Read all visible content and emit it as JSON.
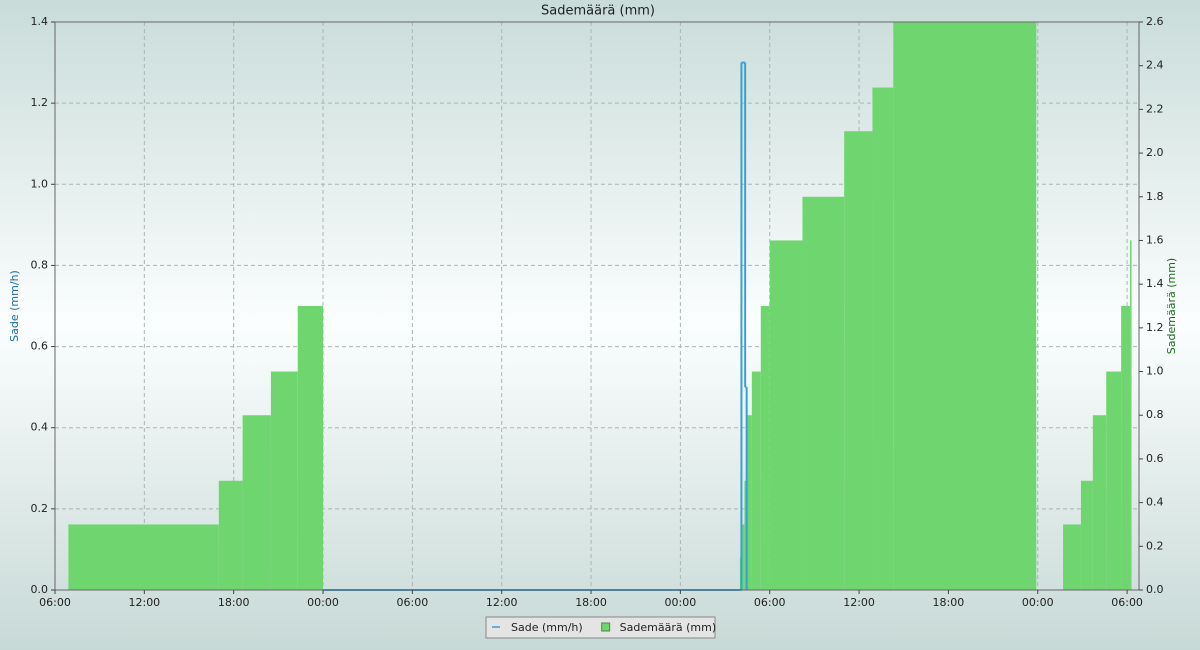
{
  "chart_data": {
    "type": "step",
    "title": "Sademäärä (mm)",
    "y_label": "Sade (mm/h)",
    "y2_label": "Sademäärä (mm)",
    "xlim": [
      0,
      72.8
    ],
    "xticks": [
      {
        "value": 0,
        "label": "06:00"
      },
      {
        "value": 6,
        "label": "12:00"
      },
      {
        "value": 12,
        "label": "18:00"
      },
      {
        "value": 18,
        "label": "00:00"
      },
      {
        "value": 24,
        "label": "06:00"
      },
      {
        "value": 30,
        "label": "12:00"
      },
      {
        "value": 36,
        "label": "18:00"
      },
      {
        "value": 42,
        "label": "00:00"
      },
      {
        "value": 48,
        "label": "06:00"
      },
      {
        "value": 54,
        "label": "12:00"
      },
      {
        "value": 60,
        "label": "18:00"
      },
      {
        "value": 66,
        "label": "00:00"
      },
      {
        "value": 72,
        "label": "06:00"
      }
    ],
    "ylim": [
      0,
      1.4
    ],
    "yticks": [
      {
        "value": 0,
        "label": "0.0"
      },
      0.2,
      0.4,
      0.6,
      0.8,
      {
        "value": 1,
        "label": "1.0"
      },
      1.2,
      1.4
    ],
    "y2lim": [
      0,
      2.6
    ],
    "y2ticks": [
      {
        "value": 0,
        "label": "0.0"
      },
      0.2,
      0.4,
      0.6,
      0.8,
      {
        "value": 1,
        "label": "1.0"
      },
      1.2,
      1.4,
      1.6,
      1.8,
      {
        "value": 2,
        "label": "2.0"
      },
      2.2,
      2.4,
      2.6
    ],
    "grid": true,
    "legend": "bottom",
    "series": [
      {
        "name": "Sade (mm/h)",
        "type": "line",
        "axis": "y",
        "color": "#3a9fd6",
        "x": [
          18.0,
          46.1,
          46.35,
          46.45
        ],
        "values": [
          0,
          1.3,
          0.5,
          0
        ]
      },
      {
        "name": "Sademäärä (mm)",
        "type": "area",
        "axis": "y2",
        "color": "#6fd56f",
        "x": [
          0.9,
          11.0,
          12.6,
          14.5,
          16.3,
          18.0,
          46.0,
          46.1,
          46.3,
          46.5,
          46.8,
          47.4,
          48.0,
          50.2,
          53.0,
          54.9,
          56.3,
          65.9,
          67.7,
          68.9,
          69.7,
          70.6,
          71.6,
          72.2,
          72.3
        ],
        "values": [
          0.3,
          0.5,
          0.8,
          1.0,
          1.3,
          0,
          0.15,
          0.3,
          0.5,
          0.8,
          1.0,
          1.3,
          1.6,
          1.8,
          2.1,
          2.3,
          2.6,
          0,
          0.3,
          0.5,
          0.8,
          1.0,
          1.3,
          1.6,
          0
        ]
      }
    ]
  }
}
